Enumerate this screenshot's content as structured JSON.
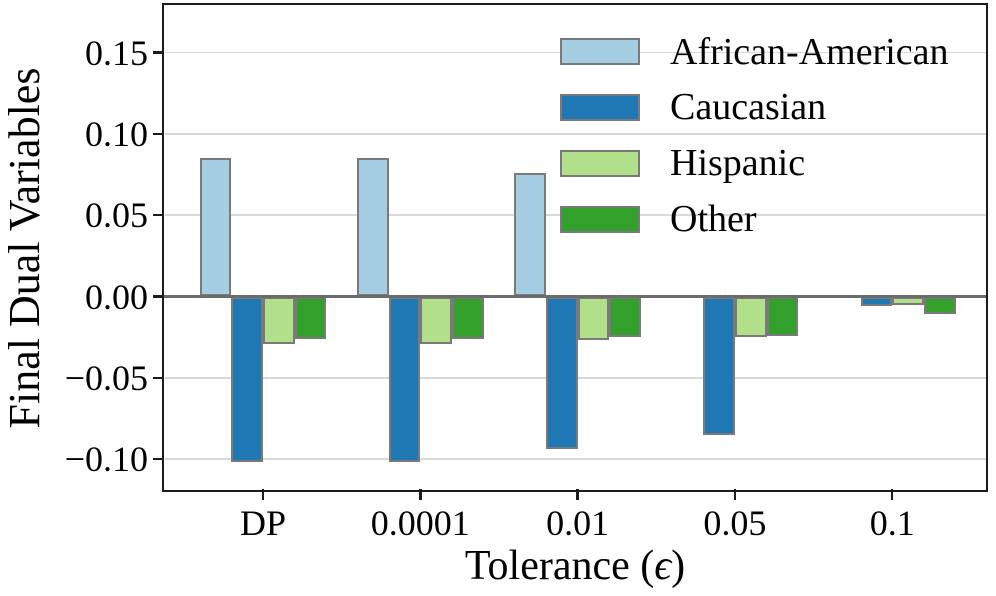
{
  "figure": {
    "ylabel": "Final Dual Variables",
    "xlabel_prefix": "Tolerance (",
    "xlabel_symbol": "ϵ",
    "xlabel_suffix": ")"
  },
  "chart_data": {
    "type": "bar",
    "title": "",
    "xlabel": "Tolerance (ϵ)",
    "ylabel": "Final Dual Variables",
    "categories": [
      "DP",
      "0.0001",
      "0.01",
      "0.05",
      "0.1"
    ],
    "series": [
      {
        "name": "African-American",
        "color": "#a6cee3",
        "values": [
          0.085,
          0.085,
          0.076,
          0.0,
          0.0
        ]
      },
      {
        "name": "Caucasian",
        "color": "#1f78b4",
        "values": [
          -0.102,
          -0.102,
          -0.094,
          -0.085,
          -0.006
        ]
      },
      {
        "name": "Hispanic",
        "color": "#b2df8a",
        "values": [
          -0.029,
          -0.029,
          -0.027,
          -0.025,
          -0.005
        ]
      },
      {
        "name": "Other",
        "color": "#33a02c",
        "values": [
          -0.026,
          -0.026,
          -0.025,
          -0.024,
          -0.011
        ]
      }
    ],
    "yticks": [
      {
        "v": 0.15,
        "label": "0.15"
      },
      {
        "v": 0.1,
        "label": "0.10"
      },
      {
        "v": 0.05,
        "label": "0.05"
      },
      {
        "v": 0.0,
        "label": "0.00"
      },
      {
        "v": -0.05,
        "label": "−0.05"
      },
      {
        "v": -0.1,
        "label": "−0.10"
      }
    ],
    "ylim": [
      -0.12,
      0.18
    ],
    "grid": true,
    "legend_position": "upper right",
    "colors": {
      "bar_edge": "#7a7a7a",
      "zero_line": "#6b6b6b",
      "gridline": "#d9d9d9",
      "spine": "#1c1c1c"
    }
  }
}
